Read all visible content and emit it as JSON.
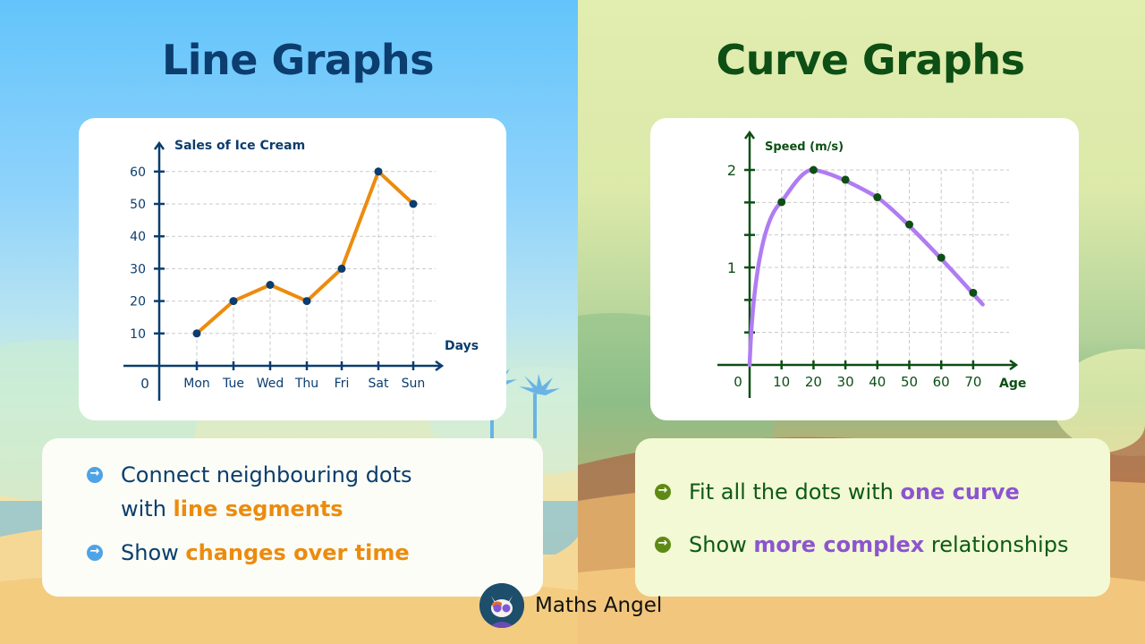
{
  "left_panel": {
    "title": "Line Graphs",
    "bullets": [
      {
        "prefix": "Connect neighbouring dots",
        "line2_prefix": "with ",
        "highlight": "line segments",
        "suffix": ""
      },
      {
        "prefix": "Show ",
        "highlight": "changes over time",
        "suffix": ""
      }
    ]
  },
  "right_panel": {
    "title": "Curve Graphs",
    "bullets": [
      {
        "prefix": "Fit all the dots with ",
        "highlight": "one curve",
        "suffix": ""
      },
      {
        "prefix": "Show ",
        "highlight": "more complex",
        "suffix": " relationships"
      }
    ]
  },
  "brand": {
    "name": "Maths Angel",
    "icon": "cat-mascot-icon"
  },
  "colors": {
    "line_title": "#0b3d6e",
    "curve_title": "#0d4f14",
    "line_stroke": "#ec8b0e",
    "line_dot": "#0b3d6e",
    "curve_stroke": "#b07cf2",
    "curve_dot": "#0d4f14",
    "highlight_orange": "#ec8b0e",
    "highlight_purple": "#8c55cf"
  },
  "chart_data": [
    {
      "type": "line",
      "title": "Sales of Ice Cream",
      "xlabel": "Days",
      "ylabel": "Sales of Ice Cream",
      "origin_label": "0",
      "categories": [
        "Mon",
        "Tue",
        "Wed",
        "Thu",
        "Fri",
        "Sat",
        "Sun"
      ],
      "values": [
        10,
        20,
        25,
        20,
        30,
        60,
        50
      ],
      "yticks": [
        10,
        20,
        30,
        40,
        50,
        60
      ],
      "ylim": [
        0,
        65
      ],
      "grid": true,
      "legend": null
    },
    {
      "type": "line",
      "subtype": "smooth-curve-fit",
      "title": "Speed (m/s)",
      "xlabel": "Age",
      "ylabel": "Speed (m/s)",
      "origin_label": "0",
      "x": [
        10,
        20,
        30,
        40,
        50,
        60,
        70
      ],
      "values": [
        1.67,
        2.0,
        1.9,
        1.72,
        1.44,
        1.1,
        0.74
      ],
      "xticks": [
        10,
        20,
        30,
        40,
        50,
        60,
        70
      ],
      "ytick_labels": {
        "1": "1",
        "2": "2"
      },
      "yticks_minor_step": 0.333,
      "ylim": [
        0,
        2.2
      ],
      "xlim": [
        0,
        80
      ],
      "grid": true,
      "legend": null
    }
  ]
}
